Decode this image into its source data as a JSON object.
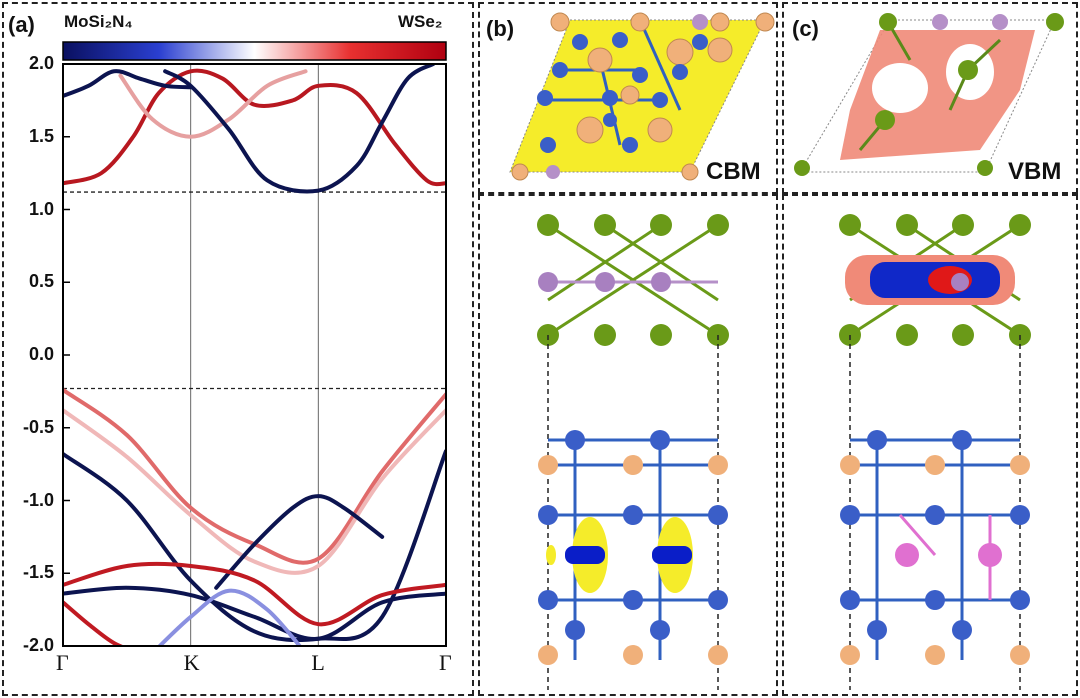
{
  "figure": {
    "panel_a_label": "(a)",
    "panel_b_label": "(b)",
    "panel_c_label": "(c)",
    "cbm_label": "CBM",
    "vbm_label": "VBM",
    "colorbar_left": "MoSi₂N₄",
    "colorbar_right": "WSe₂"
  },
  "chart_data": {
    "type": "line",
    "title": "",
    "xlabel": "",
    "ylabel": "",
    "xticks": [
      "Γ",
      "K",
      "L",
      "Γ"
    ],
    "ylim": [
      -2.0,
      2.0
    ],
    "yticks": [
      "2.0",
      "1.5",
      "1.0",
      "0.5",
      "0.0",
      "-0.5",
      "-1.0",
      "-1.5",
      "-2.0"
    ],
    "ytick_values": [
      2.0,
      1.5,
      1.0,
      0.5,
      0.0,
      -0.5,
      -1.0,
      -1.5,
      -2.0
    ],
    "reference_lines": [
      1.12,
      -0.23
    ],
    "colorbar": {
      "min_label": "MoSi₂N₄",
      "max_label": "WSe₂",
      "colors": [
        "#0a1060",
        "#2a3fd0",
        "#ffffff",
        "#e83030",
        "#b00010"
      ]
    },
    "series": [
      {
        "color": "#b81820",
        "x": [
          0,
          0.3,
          0.55,
          0.75,
          1.0,
          1.25,
          1.5,
          1.8,
          2.0,
          2.3,
          2.6,
          2.85,
          3.0
        ],
        "y": [
          1.18,
          1.25,
          1.5,
          1.8,
          1.95,
          1.9,
          1.72,
          1.75,
          1.85,
          1.8,
          1.45,
          1.2,
          1.18
        ]
      },
      {
        "color": "#e6a0a0",
        "x": [
          0.45,
          0.7,
          1.0,
          1.3,
          1.6,
          1.9
        ],
        "y": [
          1.92,
          1.62,
          1.5,
          1.62,
          1.85,
          1.95
        ]
      },
      {
        "color": "#0c1450",
        "x": [
          0.8,
          1.0,
          1.3,
          1.6,
          2.0,
          2.3,
          2.5,
          2.7,
          2.9
        ],
        "y": [
          1.95,
          1.85,
          1.55,
          1.2,
          1.13,
          1.3,
          1.6,
          1.9,
          2.0
        ]
      },
      {
        "color": "#0c1450",
        "x": [
          0,
          0.2,
          0.4,
          0.6,
          0.8,
          1.0
        ],
        "y": [
          1.78,
          1.85,
          1.95,
          1.9,
          1.85,
          1.84
        ]
      },
      {
        "color": "#e06a6a",
        "x": [
          0,
          0.5,
          1.0,
          1.5,
          2.0,
          2.5,
          3.0
        ],
        "y": [
          -0.24,
          -0.55,
          -1.05,
          -1.3,
          -1.4,
          -0.8,
          -0.27
        ]
      },
      {
        "color": "#f0b8b8",
        "x": [
          0,
          0.5,
          1.0,
          1.5,
          2.0,
          2.5,
          3.0
        ],
        "y": [
          -0.38,
          -0.7,
          -1.1,
          -1.42,
          -1.45,
          -0.85,
          -0.38
        ]
      },
      {
        "color": "#0c1450",
        "x": [
          0,
          0.5,
          1.0,
          1.5,
          2.0,
          2.5,
          3.0
        ],
        "y": [
          -0.68,
          -1.0,
          -1.55,
          -1.9,
          -1.95,
          -1.8,
          -0.66
        ]
      },
      {
        "color": "#0c1450",
        "x": [
          1.2,
          1.5,
          1.8,
          2.0,
          2.2,
          2.5
        ],
        "y": [
          -1.6,
          -1.3,
          -1.05,
          -0.97,
          -1.05,
          -1.25
        ]
      },
      {
        "color": "#c01a22",
        "x": [
          0,
          0.5,
          1.0,
          1.5,
          2.0,
          2.5,
          3.0
        ],
        "y": [
          -1.58,
          -1.45,
          -1.45,
          -1.55,
          -1.85,
          -1.65,
          -1.58
        ]
      },
      {
        "color": "#0c1450",
        "x": [
          0,
          0.5,
          1.0,
          1.5,
          2.0,
          2.5,
          3.0
        ],
        "y": [
          -1.64,
          -1.6,
          -1.65,
          -1.8,
          -1.95,
          -1.7,
          -1.64
        ]
      },
      {
        "color": "#c01a22",
        "x": [
          0,
          0.2,
          0.4,
          0.6
        ],
        "y": [
          -1.7,
          -1.85,
          -1.98,
          -2.05
        ]
      },
      {
        "color": "#8a90e0",
        "x": [
          0.7,
          1.0,
          1.3,
          1.6,
          1.9
        ],
        "y": [
          -2.05,
          -1.8,
          -1.62,
          -1.75,
          -2.05
        ]
      }
    ]
  }
}
